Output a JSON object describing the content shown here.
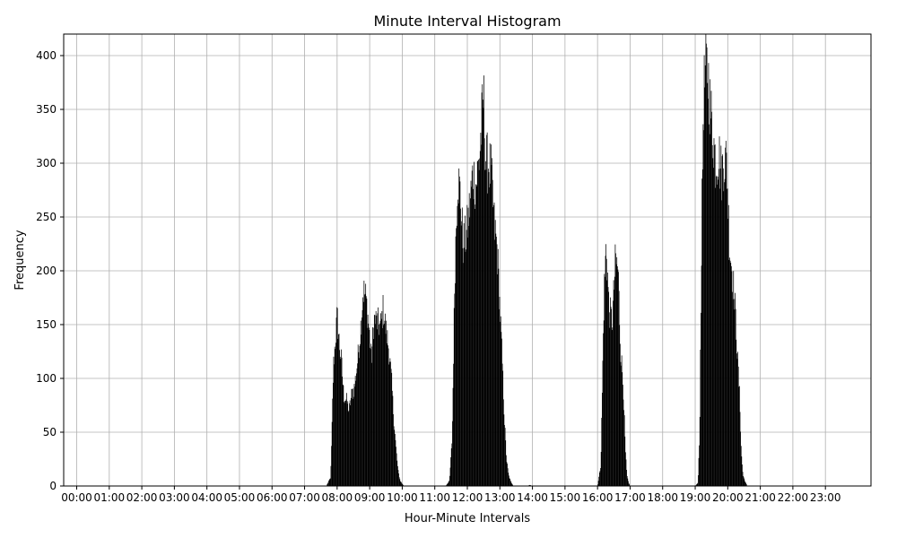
{
  "chart_data": {
    "type": "bar",
    "title": "Minute Interval Histogram",
    "xlabel": "Hour-Minute Intervals",
    "ylabel": "Frequency",
    "x_range_minutes": [
      0,
      1440
    ],
    "ylim": [
      0,
      420
    ],
    "y_ticks": [
      0,
      50,
      100,
      150,
      200,
      250,
      300,
      350,
      400
    ],
    "x_ticks": [
      "00:00",
      "01:00",
      "02:00",
      "03:00",
      "04:00",
      "05:00",
      "06:00",
      "07:00",
      "08:00",
      "09:00",
      "10:00",
      "11:00",
      "12:00",
      "13:00",
      "14:00",
      "15:00",
      "16:00",
      "17:00",
      "18:00",
      "19:00",
      "20:00",
      "21:00",
      "22:00",
      "23:00"
    ],
    "grid": true,
    "bar_color": "#000000",
    "profile_points": [
      [
        "07:40",
        0
      ],
      [
        "07:48",
        8
      ],
      [
        "07:50",
        45
      ],
      [
        "07:53",
        110
      ],
      [
        "07:57",
        138
      ],
      [
        "08:00",
        158
      ],
      [
        "08:04",
        132
      ],
      [
        "08:08",
        115
      ],
      [
        "08:12",
        84
      ],
      [
        "08:17",
        80
      ],
      [
        "08:22",
        70
      ],
      [
        "08:27",
        86
      ],
      [
        "08:32",
        92
      ],
      [
        "08:38",
        118
      ],
      [
        "08:43",
        145
      ],
      [
        "08:48",
        182
      ],
      [
        "08:53",
        175
      ],
      [
        "08:58",
        150
      ],
      [
        "09:03",
        118
      ],
      [
        "09:08",
        155
      ],
      [
        "09:14",
        152
      ],
      [
        "09:20",
        148
      ],
      [
        "09:25",
        165
      ],
      [
        "09:30",
        145
      ],
      [
        "09:35",
        128
      ],
      [
        "09:40",
        100
      ],
      [
        "09:44",
        65
      ],
      [
        "09:48",
        38
      ],
      [
        "09:52",
        15
      ],
      [
        "09:56",
        5
      ],
      [
        "10:00",
        2
      ],
      [
        "10:03",
        0
      ],
      [
        "11:20",
        0
      ],
      [
        "11:27",
        5
      ],
      [
        "11:32",
        45
      ],
      [
        "11:37",
        200
      ],
      [
        "11:42",
        290
      ],
      [
        "11:47",
        270
      ],
      [
        "11:52",
        225
      ],
      [
        "11:58",
        232
      ],
      [
        "12:04",
        258
      ],
      [
        "12:10",
        290
      ],
      [
        "12:16",
        280
      ],
      [
        "12:22",
        305
      ],
      [
        "12:27",
        340
      ],
      [
        "12:30",
        362
      ],
      [
        "12:34",
        300
      ],
      [
        "12:39",
        300
      ],
      [
        "12:44",
        290
      ],
      [
        "12:50",
        240
      ],
      [
        "12:55",
        220
      ],
      [
        "13:00",
        165
      ],
      [
        "13:04",
        120
      ],
      [
        "13:08",
        65
      ],
      [
        "13:12",
        25
      ],
      [
        "13:16",
        10
      ],
      [
        "13:20",
        4
      ],
      [
        "13:25",
        0
      ],
      [
        "13:50",
        0
      ],
      [
        "13:55",
        1
      ],
      [
        "14:00",
        0
      ],
      [
        "16:00",
        0
      ],
      [
        "16:06",
        20
      ],
      [
        "16:09",
        100
      ],
      [
        "16:12",
        180
      ],
      [
        "16:16",
        225
      ],
      [
        "16:21",
        165
      ],
      [
        "16:27",
        152
      ],
      [
        "16:33",
        210
      ],
      [
        "16:38",
        200
      ],
      [
        "16:42",
        130
      ],
      [
        "16:45",
        110
      ],
      [
        "16:48",
        85
      ],
      [
        "16:51",
        35
      ],
      [
        "16:54",
        10
      ],
      [
        "16:57",
        3
      ],
      [
        "17:00",
        0
      ],
      [
        "19:00",
        0
      ],
      [
        "19:05",
        3
      ],
      [
        "19:08",
        45
      ],
      [
        "19:11",
        200
      ],
      [
        "19:15",
        360
      ],
      [
        "19:20",
        390
      ],
      [
        "19:24",
        380
      ],
      [
        "19:28",
        350
      ],
      [
        "19:33",
        325
      ],
      [
        "19:38",
        300
      ],
      [
        "19:43",
        310
      ],
      [
        "19:48",
        290
      ],
      [
        "19:53",
        305
      ],
      [
        "19:58",
        300
      ],
      [
        "20:03",
        225
      ],
      [
        "20:08",
        200
      ],
      [
        "20:13",
        170
      ],
      [
        "20:18",
        120
      ],
      [
        "20:22",
        80
      ],
      [
        "20:25",
        30
      ],
      [
        "20:28",
        10
      ],
      [
        "20:32",
        4
      ],
      [
        "20:36",
        0
      ]
    ]
  }
}
